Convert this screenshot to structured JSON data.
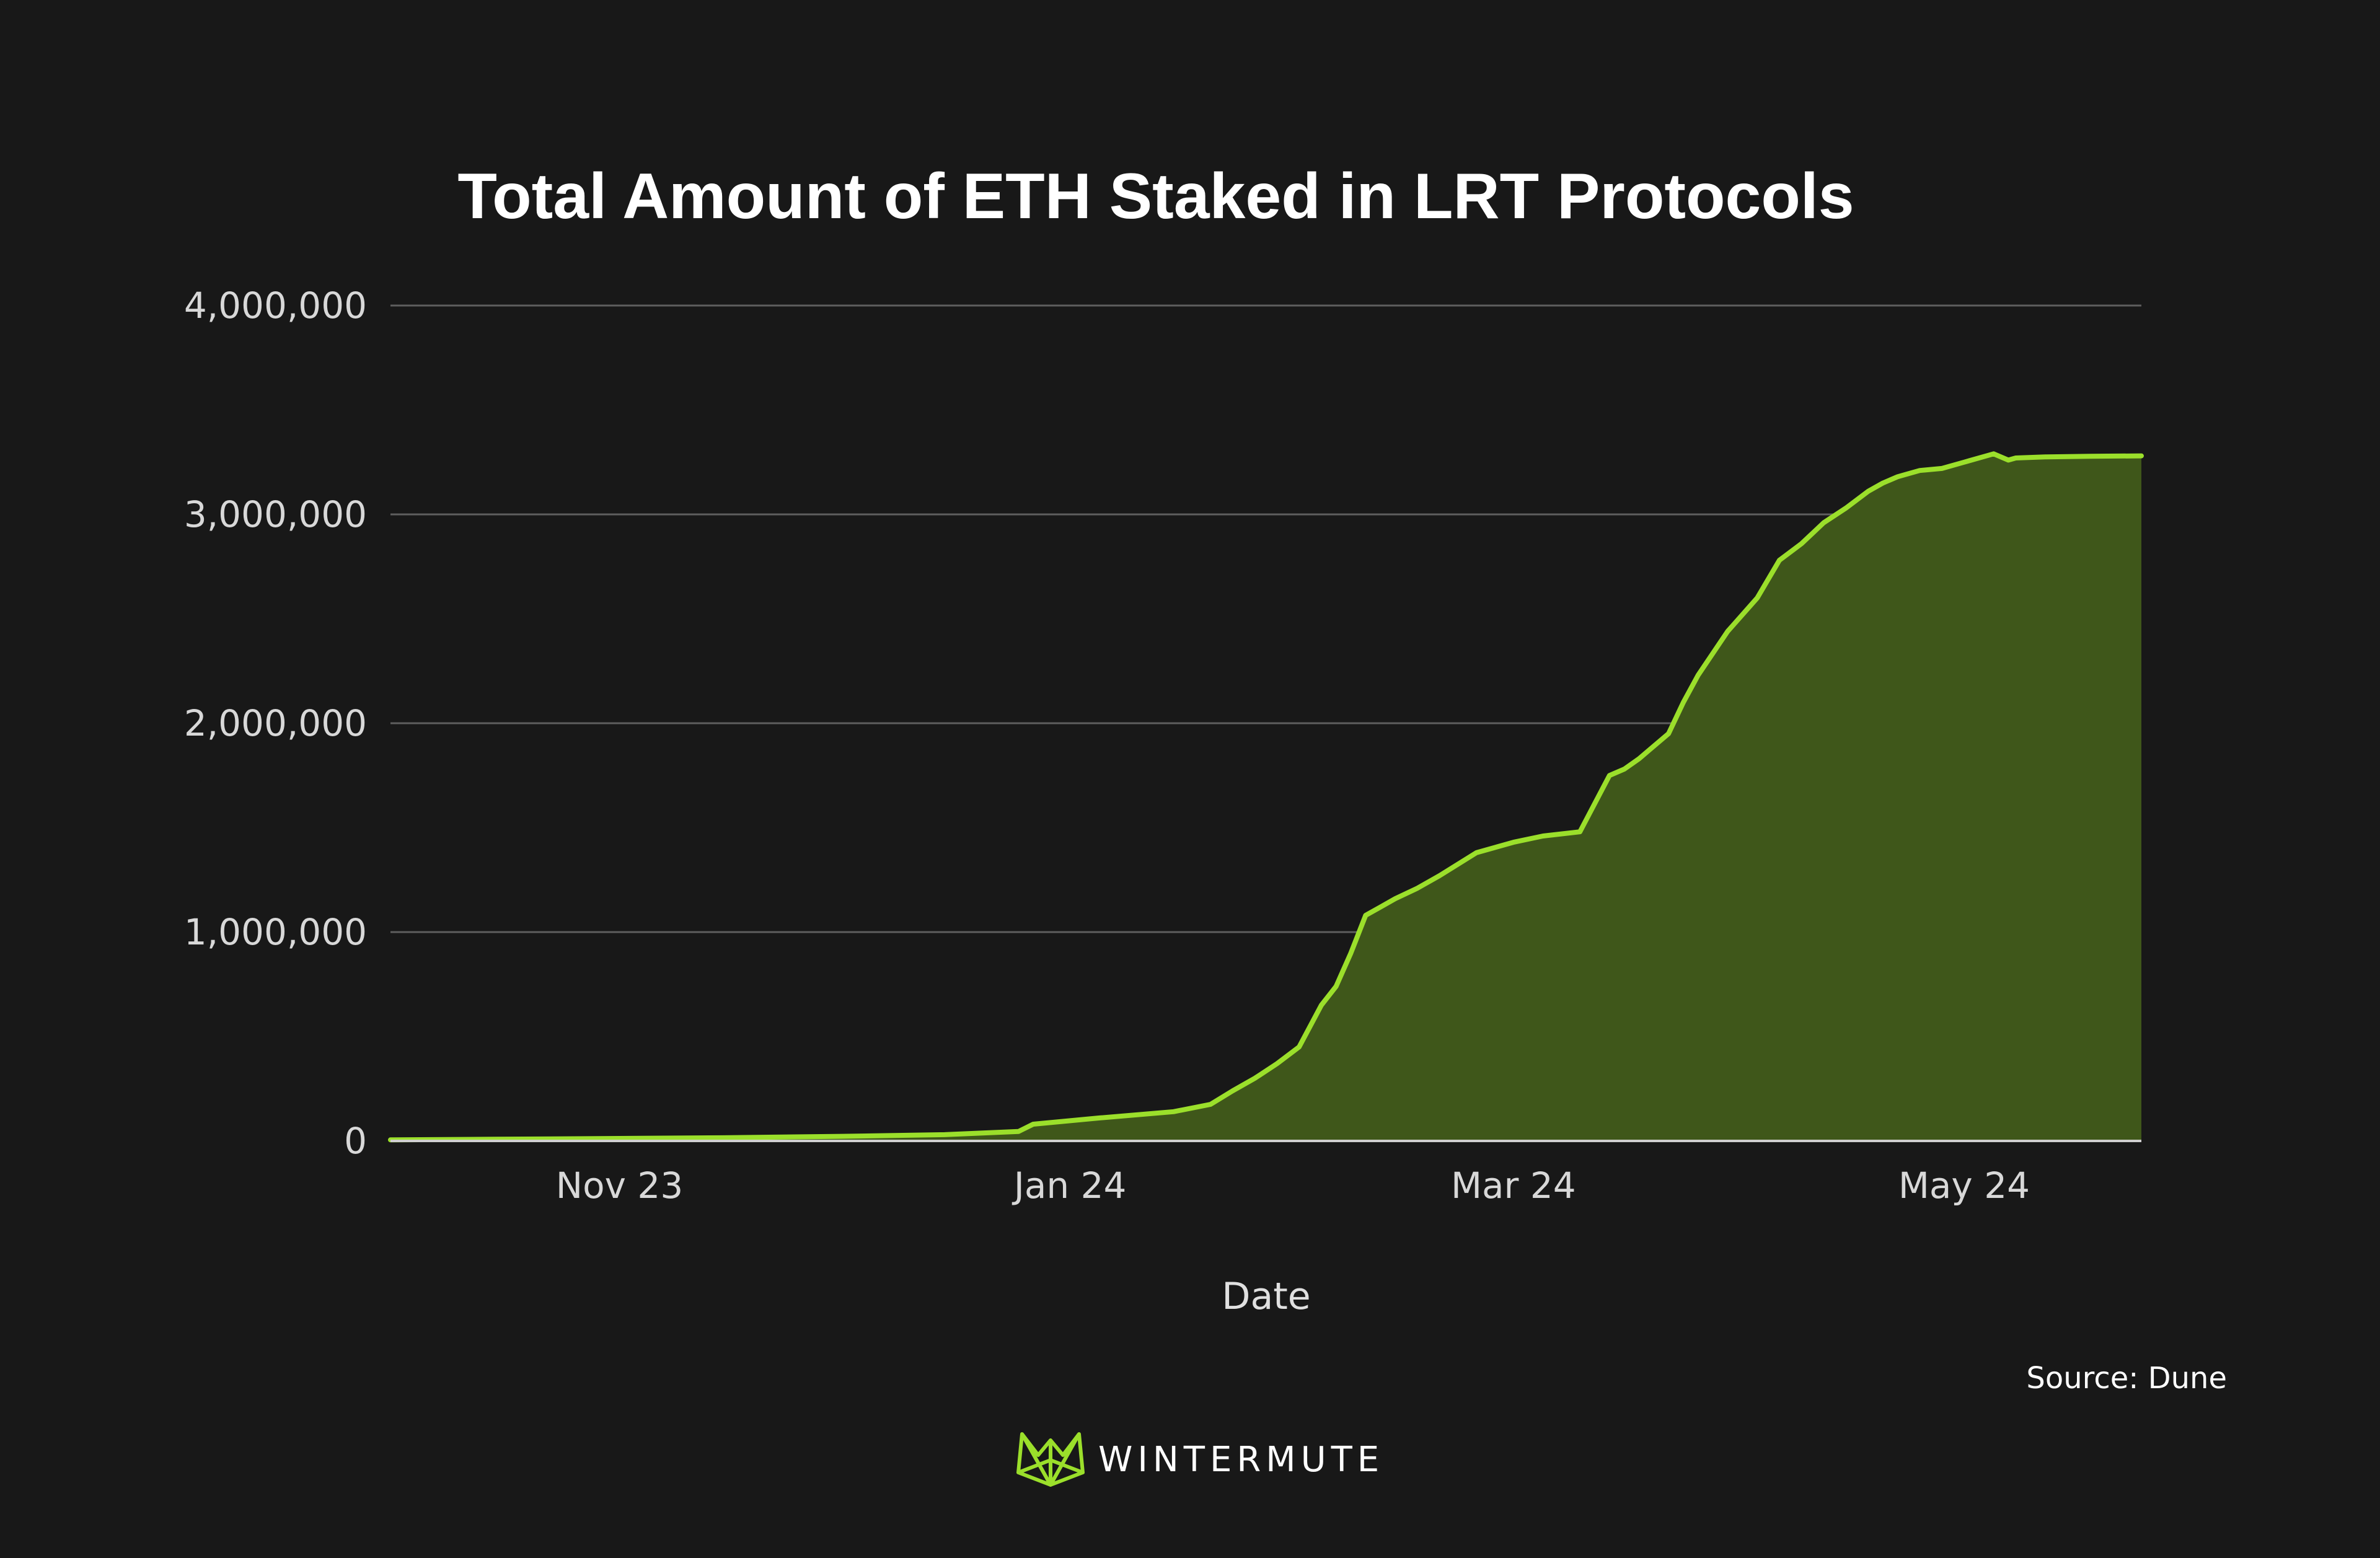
{
  "chart_data": {
    "type": "area",
    "title": "Total Amount of ETH Staked in LRT Protocols",
    "xlabel": "Date",
    "ylabel": "",
    "ylim": [
      0,
      4000000
    ],
    "yticks": [
      0,
      1000000,
      2000000,
      3000000,
      4000000
    ],
    "ytick_labels": [
      "0",
      "1,000,000",
      "2,000,000",
      "3,000,000",
      "4,000,000"
    ],
    "xlim": [
      "2023-10-01",
      "2024-05-25"
    ],
    "xticks": [
      "2023-11-01",
      "2024-01-01",
      "2024-03-01",
      "2024-05-01"
    ],
    "xtick_labels": [
      "Nov 23",
      "Jan 24",
      "Mar 24",
      "May 24"
    ],
    "grid": true,
    "colors": {
      "line": "#9bdf2b",
      "fill": "#3f571a",
      "background": "#181818",
      "grid": "#5e5e5e"
    },
    "series": [
      {
        "name": "",
        "x": [
          "2023-10-01",
          "2023-10-15",
          "2023-11-01",
          "2023-11-15",
          "2023-12-01",
          "2023-12-15",
          "2023-12-25",
          "2023-12-27",
          "2024-01-05",
          "2024-01-15",
          "2024-01-20",
          "2024-01-23",
          "2024-01-26",
          "2024-01-29",
          "2024-02-01",
          "2024-02-04",
          "2024-02-06",
          "2024-02-08",
          "2024-02-10",
          "2024-02-12",
          "2024-02-14",
          "2024-02-17",
          "2024-02-20",
          "2024-02-25",
          "2024-03-01",
          "2024-03-05",
          "2024-03-10",
          "2024-03-14",
          "2024-03-16",
          "2024-03-18",
          "2024-03-22",
          "2024-03-24",
          "2024-03-26",
          "2024-03-30",
          "2024-04-03",
          "2024-04-06",
          "2024-04-09",
          "2024-04-12",
          "2024-04-15",
          "2024-04-18",
          "2024-04-20",
          "2024-04-22",
          "2024-04-25",
          "2024-04-28",
          "2024-05-01",
          "2024-05-05",
          "2024-05-07",
          "2024-05-08",
          "2024-05-12",
          "2024-05-18",
          "2024-05-25"
        ],
        "y": [
          5000,
          8000,
          12000,
          15000,
          22000,
          30000,
          45000,
          80000,
          110000,
          140000,
          175000,
          240000,
          300000,
          370000,
          450000,
          650000,
          740000,
          900000,
          1080000,
          1120000,
          1160000,
          1210000,
          1270000,
          1380000,
          1430000,
          1460000,
          1480000,
          1750000,
          1780000,
          1830000,
          1950000,
          2100000,
          2230000,
          2440000,
          2600000,
          2780000,
          2860000,
          2960000,
          3030000,
          3110000,
          3150000,
          3180000,
          3210000,
          3220000,
          3250000,
          3290000,
          3260000,
          3270000,
          3275000,
          3278000,
          3280000
        ]
      }
    ],
    "source": "Source: Dune",
    "brand": "WINTERMUTE"
  }
}
